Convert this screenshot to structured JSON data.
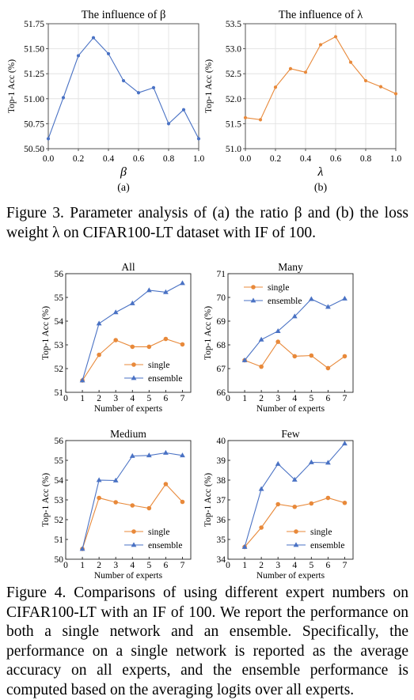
{
  "figure3": {
    "panels": [
      {
        "id": "beta",
        "title": "The influence of β",
        "xlabel": "β",
        "ylabel": "Top-1 Acc (%)",
        "sublabel": "(a)",
        "color": "#4a72c4"
      },
      {
        "id": "lambda",
        "title": "The influence of λ",
        "xlabel": "λ",
        "ylabel": "Top-1 Acc (%)",
        "sublabel": "(b)",
        "color": "#e8893a"
      }
    ],
    "caption": "Figure 3.  Parameter analysis of (a) the ratio β and (b) the loss weight λ on CIFAR100-LT dataset with IF of 100."
  },
  "figure4": {
    "xlabel": "Number of experts",
    "ylabel": "Top-1 Acc (%)",
    "caption": "Figure 4.  Comparisons of using different expert numbers on CIFAR100-LT with an IF of 100. We report the performance on both a single network and an ensemble. Specifically, the performance on a single network is reported as the average accuracy on all experts, and the ensemble performance is computed based on the averaging logits over all experts.",
    "colors": {
      "single": "#e8893a",
      "ensemble": "#4a72c4"
    }
  },
  "chart_data": [
    {
      "type": "line",
      "title": "The influence of β",
      "xlabel": "β",
      "ylabel": "Top-1 Acc (%)",
      "x": [
        0.0,
        0.1,
        0.2,
        0.3,
        0.4,
        0.5,
        0.6,
        0.7,
        0.8,
        0.9,
        1.0
      ],
      "series": [
        {
          "values": [
            50.6,
            51.01,
            51.43,
            51.61,
            51.45,
            51.18,
            51.06,
            51.11,
            50.75,
            50.89,
            50.6
          ]
        }
      ],
      "xlim": [
        0.0,
        1.0
      ],
      "ylim": [
        50.5,
        51.75
      ],
      "xticks": [
        "0.0",
        "0.2",
        "0.4",
        "0.6",
        "0.8",
        "1.0"
      ],
      "yticks": [
        "50.50",
        "50.75",
        "51.00",
        "51.25",
        "51.50",
        "51.75"
      ],
      "grid": true
    },
    {
      "type": "line",
      "title": "The influence of λ",
      "xlabel": "λ",
      "ylabel": "Top-1 Acc (%)",
      "x": [
        0.0,
        0.1,
        0.2,
        0.3,
        0.4,
        0.5,
        0.6,
        0.7,
        0.8,
        0.9,
        1.0
      ],
      "series": [
        {
          "values": [
            51.62,
            51.58,
            52.23,
            52.6,
            52.53,
            53.08,
            53.24,
            52.73,
            52.36,
            52.24,
            52.1
          ]
        }
      ],
      "xlim": [
        0.0,
        1.0
      ],
      "ylim": [
        51.0,
        53.5
      ],
      "xticks": [
        "0.0",
        "0.2",
        "0.4",
        "0.6",
        "0.8",
        "1.0"
      ],
      "yticks": [
        "51.0",
        "51.5",
        "52.0",
        "52.5",
        "53.0",
        "53.5"
      ],
      "grid": true
    },
    {
      "type": "line",
      "title": "All",
      "xlabel": "Number of experts",
      "ylabel": "Top-1 Acc (%)",
      "x": [
        1,
        2,
        3,
        4,
        5,
        6,
        7
      ],
      "series": [
        {
          "name": "single",
          "values": [
            51.5,
            52.58,
            53.2,
            52.92,
            52.92,
            53.25,
            53.02
          ]
        },
        {
          "name": "ensemble",
          "values": [
            51.5,
            53.9,
            54.37,
            54.75,
            55.3,
            55.22,
            55.6
          ]
        }
      ],
      "xlim": [
        0,
        7.5
      ],
      "ylim": [
        51,
        56
      ],
      "xticks": [
        "0",
        "1",
        "2",
        "3",
        "4",
        "5",
        "6",
        "7"
      ],
      "yticks": [
        "51",
        "52",
        "53",
        "54",
        "55",
        "56"
      ],
      "legend": "bottom-right",
      "grid": false
    },
    {
      "type": "line",
      "title": "Many",
      "xlabel": "Number of experts",
      "ylabel": "Top-1 Acc (%)",
      "x": [
        1,
        2,
        3,
        4,
        5,
        6,
        7
      ],
      "series": [
        {
          "name": "single",
          "values": [
            67.35,
            67.08,
            68.13,
            67.52,
            67.55,
            67.02,
            67.52
          ]
        },
        {
          "name": "ensemble",
          "values": [
            67.35,
            68.22,
            68.58,
            69.2,
            69.93,
            69.6,
            69.95
          ]
        }
      ],
      "xlim": [
        0,
        7.5
      ],
      "ylim": [
        66,
        71
      ],
      "xticks": [
        "0",
        "1",
        "2",
        "3",
        "4",
        "5",
        "6",
        "7"
      ],
      "yticks": [
        "66",
        "67",
        "68",
        "69",
        "70",
        "71"
      ],
      "legend": "top-left",
      "grid": false
    },
    {
      "type": "line",
      "title": "Medium",
      "xlabel": "Number of experts",
      "ylabel": "Top-1 Acc (%)",
      "x": [
        1,
        2,
        3,
        4,
        5,
        6,
        7
      ],
      "series": [
        {
          "name": "single",
          "values": [
            50.52,
            53.1,
            52.88,
            52.72,
            52.58,
            53.8,
            52.9
          ]
        },
        {
          "name": "ensemble",
          "values": [
            50.52,
            54.0,
            53.98,
            55.22,
            55.25,
            55.38,
            55.25
          ]
        }
      ],
      "xlim": [
        0,
        7.5
      ],
      "ylim": [
        50,
        56
      ],
      "xticks": [
        "0",
        "1",
        "2",
        "3",
        "4",
        "5",
        "6",
        "7"
      ],
      "yticks": [
        "50",
        "51",
        "52",
        "53",
        "54",
        "55",
        "56"
      ],
      "legend": "bottom-right",
      "grid": false
    },
    {
      "type": "line",
      "title": "Few",
      "xlabel": "Number of experts",
      "ylabel": "Top-1 Acc (%)",
      "x": [
        1,
        2,
        3,
        4,
        5,
        6,
        7
      ],
      "series": [
        {
          "name": "single",
          "values": [
            34.62,
            35.6,
            36.78,
            36.65,
            36.82,
            37.1,
            36.85
          ]
        },
        {
          "name": "ensemble",
          "values": [
            34.62,
            37.55,
            38.82,
            38.02,
            38.9,
            38.88,
            39.85
          ]
        }
      ],
      "xlim": [
        0,
        7.5
      ],
      "ylim": [
        34,
        40
      ],
      "xticks": [
        "0",
        "1",
        "2",
        "3",
        "4",
        "5",
        "6",
        "7"
      ],
      "yticks": [
        "34",
        "35",
        "36",
        "37",
        "38",
        "39",
        "40"
      ],
      "legend": "bottom-right",
      "grid": false
    }
  ]
}
